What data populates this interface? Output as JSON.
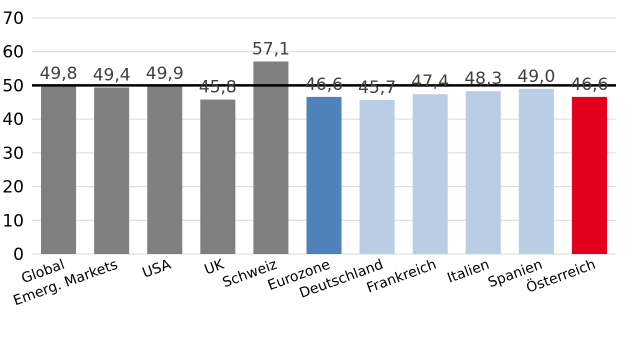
{
  "chart_data": {
    "type": "bar",
    "categories": [
      "Global",
      "Emerg. Markets",
      "USA",
      "UK",
      "Schweiz",
      "Eurozone",
      "Deutschland",
      "Frankreich",
      "Italien",
      "Spanien",
      "Österreich"
    ],
    "values": [
      49.8,
      49.4,
      49.9,
      45.8,
      57.1,
      46.6,
      45.7,
      47.4,
      48.3,
      49.0,
      46.6
    ],
    "value_labels": [
      "49,8",
      "49,4",
      "49,9",
      "45,8",
      "57,1",
      "46,6",
      "45,7",
      "47,4",
      "48,3",
      "49,0",
      "46,6"
    ],
    "colors": [
      "#808080",
      "#808080",
      "#808080",
      "#808080",
      "#808080",
      "#4f81bd",
      "#b9cde5",
      "#b9cde5",
      "#b9cde5",
      "#b9cde5",
      "#e2001a"
    ],
    "reference_line": 50,
    "reference_line_color": "#000000",
    "ylim": [
      0,
      70
    ],
    "yticks": [
      0,
      10,
      20,
      30,
      40,
      50,
      60,
      70
    ],
    "grid": true,
    "gridline_color": "#d9d9d9",
    "title": "",
    "xlabel": "",
    "ylabel": ""
  }
}
